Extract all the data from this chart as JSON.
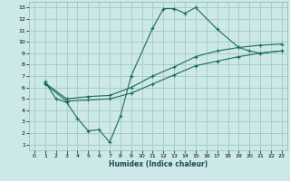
{
  "xlabel": "Humidex (Indice chaleur)",
  "bg_color": "#cce8e8",
  "grid_color": "#aacccc",
  "line_color": "#1a6b5a",
  "xlim": [
    -0.5,
    23.5
  ],
  "ylim": [
    0.5,
    13.5
  ],
  "xticks": [
    0,
    1,
    2,
    3,
    4,
    5,
    6,
    7,
    8,
    9,
    10,
    11,
    12,
    13,
    14,
    15,
    16,
    17,
    18,
    19,
    20,
    21,
    22,
    23
  ],
  "yticks": [
    1,
    2,
    3,
    4,
    5,
    6,
    7,
    8,
    9,
    10,
    11,
    12,
    13
  ],
  "lines": [
    {
      "x": [
        1,
        2,
        3,
        4,
        5,
        6,
        7,
        8,
        9,
        11,
        12,
        13,
        14,
        15,
        17,
        19,
        20,
        21,
        23
      ],
      "y": [
        6.5,
        5.0,
        4.7,
        3.3,
        2.2,
        2.3,
        1.2,
        3.5,
        7.0,
        11.2,
        12.9,
        12.9,
        12.5,
        13.0,
        11.1,
        9.5,
        9.2,
        9.0,
        9.2
      ]
    },
    {
      "x": [
        1,
        3,
        5,
        7,
        9,
        11,
        13,
        15,
        17,
        19,
        21,
        23
      ],
      "y": [
        6.4,
        5.0,
        5.2,
        5.3,
        6.0,
        7.0,
        7.8,
        8.7,
        9.2,
        9.5,
        9.7,
        9.8
      ]
    },
    {
      "x": [
        1,
        3,
        5,
        7,
        9,
        11,
        13,
        15,
        17,
        19,
        21,
        23
      ],
      "y": [
        6.3,
        4.8,
        4.9,
        5.0,
        5.5,
        6.3,
        7.1,
        7.9,
        8.3,
        8.7,
        9.0,
        9.2
      ]
    }
  ]
}
